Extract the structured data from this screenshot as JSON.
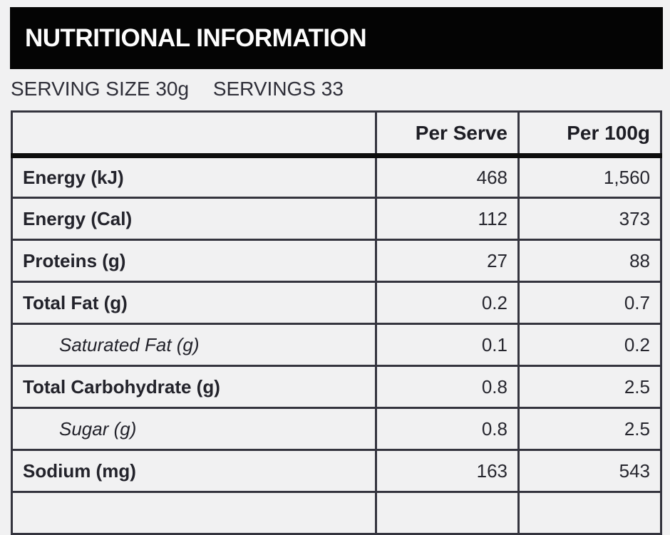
{
  "title_bar": {
    "title": "NUTRITIONAL INFORMATION"
  },
  "serving_info": {
    "serving_size": "SERVING SIZE 30g",
    "servings": "SERVINGS 33"
  },
  "table": {
    "columns": [
      "",
      "Per Serve",
      "Per 100g"
    ],
    "rows": [
      {
        "label": "Energy (kJ)",
        "per_serve": "468",
        "per_100g": "1,560",
        "indent_italic": false
      },
      {
        "label": "Energy (Cal)",
        "per_serve": "112",
        "per_100g": "373",
        "indent_italic": false
      },
      {
        "label": "Proteins (g)",
        "per_serve": "27",
        "per_100g": "88",
        "indent_italic": false
      },
      {
        "label": "Total Fat (g)",
        "per_serve": "0.2",
        "per_100g": "0.7",
        "indent_italic": false
      },
      {
        "label": "Saturated Fat (g)",
        "per_serve": "0.1",
        "per_100g": "0.2",
        "indent_italic": true
      },
      {
        "label": "Total Carbohydrate (g)",
        "per_serve": "0.8",
        "per_100g": "2.5",
        "indent_italic": false
      },
      {
        "label": "Sugar (g)",
        "per_serve": "0.8",
        "per_100g": "2.5",
        "indent_italic": true
      },
      {
        "label": "Sodium (mg)",
        "per_serve": "163",
        "per_100g": "543",
        "indent_italic": false
      },
      {
        "label": "",
        "per_serve": "",
        "per_100g": "",
        "indent_italic": false
      }
    ]
  },
  "colors": {
    "page_background": "#f1f1f2",
    "title_bar_background": "#040404",
    "title_text": "#fdfdfd",
    "table_border": "#34343e",
    "header_thick_rule": "#0d0d0d",
    "body_text": "#2e2e38"
  }
}
